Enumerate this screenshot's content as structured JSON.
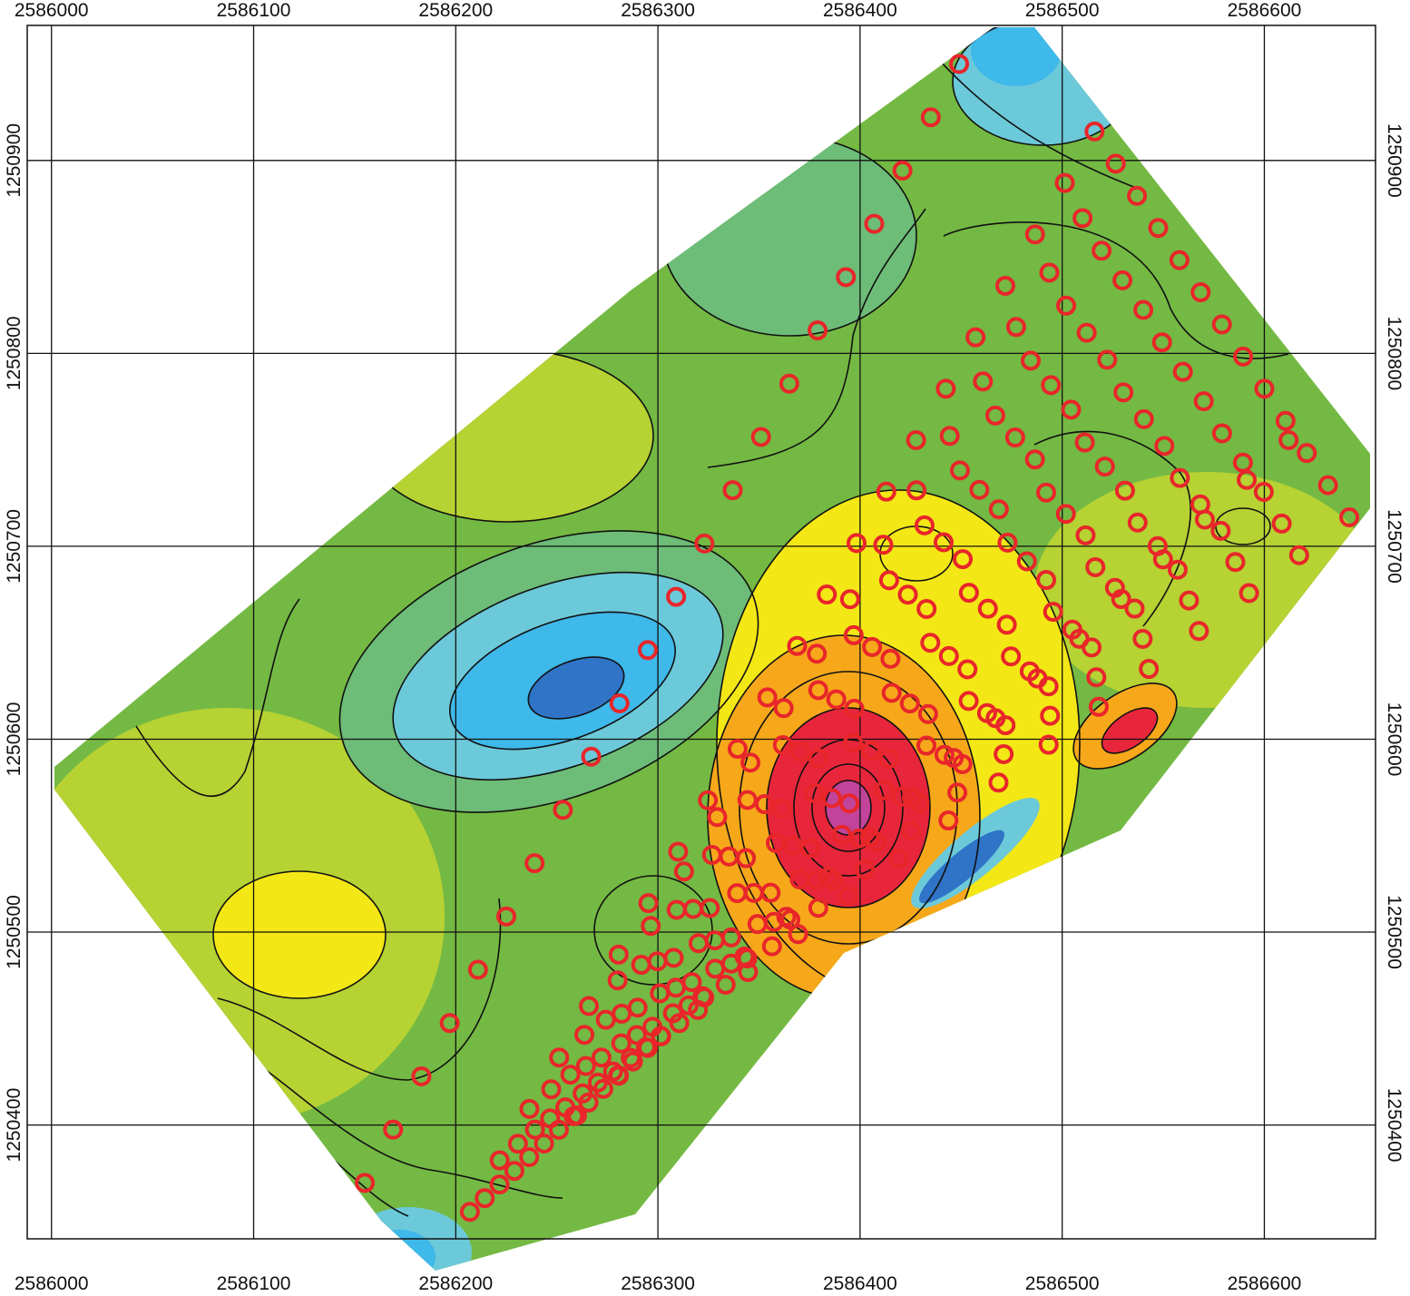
{
  "map": {
    "x_ticks": [
      "2586000",
      "2586100",
      "2586200",
      "2586300",
      "2586400",
      "2586500",
      "2586600"
    ],
    "y_ticks": [
      "1250900",
      "1250800",
      "1250700",
      "1250600",
      "1250500",
      "1250400"
    ],
    "x_range": [
      2585988,
      2586655
    ],
    "y_range": [
      1250341,
      1250970
    ],
    "grid_interval": 100,
    "contour_colors": {
      "deep_blue": "#2f74c6",
      "blue": "#3fb8ea",
      "light_blue": "#6cc9d9",
      "teal_green": "#6dbc78",
      "green": "#74b943",
      "yellow_green": "#b6d233",
      "yellow": "#f3e716",
      "orange": "#f6a81a",
      "red": "#e8263b",
      "magenta": "#c1449a"
    },
    "marker_color": "#e8262a",
    "sample_markers_rows": [
      {
        "start": [
          2586449,
          1250950
        ],
        "end": [
          2586155,
          1250370
        ],
        "count": 22
      },
      {
        "start": [
          2586516,
          1250915
        ],
        "end": [
          2586207,
          1250355
        ],
        "count": 22
      },
      {
        "start": [
          2586612,
          1250755
        ],
        "end": [
          2586260,
          1250405
        ],
        "count": 18
      },
      {
        "start": [
          2586642,
          1250715
        ],
        "end": [
          2586295,
          1250440
        ],
        "count": 15
      }
    ]
  }
}
